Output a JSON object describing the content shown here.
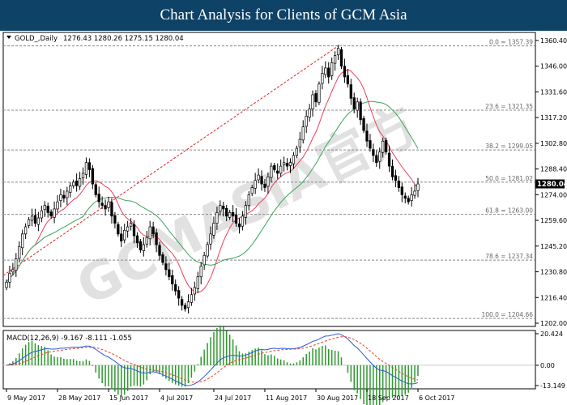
{
  "banner": {
    "title": "Chart Analysis for Clients of GCM Asia"
  },
  "watermark": {
    "brand": "GCMASIA官方"
  },
  "chart_data": {
    "type": "candlestick",
    "symbol_header": "GOLD_,Daily",
    "ohlc_header": "1276.43 1280.26 1275.15 1280.04",
    "current_price": "1280.04",
    "price_axis": {
      "min": 1202.0,
      "max": 1360.4,
      "ticks": [
        "1360.40",
        "1346.00",
        "1331.60",
        "1317.20",
        "1302.80",
        "1288.40",
        "1274.00",
        "1259.60",
        "1245.20",
        "1230.80",
        "1216.40",
        "1202.00"
      ]
    },
    "time_axis": [
      "9 May 2017",
      "28 May 2017",
      "15 Jun 2017",
      "4 Jul 2017",
      "24 Jul 2017",
      "11 Aug 2017",
      "30 Aug 2017",
      "18 Sep 2017",
      "6 Oct 2017"
    ],
    "fibonacci": [
      {
        "label": "0.0 = 1357.39",
        "price": 1357.39
      },
      {
        "label": "23.6 = 1321.35",
        "price": 1321.35
      },
      {
        "label": "38.2 = 1299.05",
        "price": 1299.05
      },
      {
        "label": "50.0 = 1281.02",
        "price": 1281.02
      },
      {
        "label": "61.8 = 1263.00",
        "price": 1263.0
      },
      {
        "label": "78.6 = 1237.34",
        "price": 1237.34
      },
      {
        "label": "100.0 = 1204.66",
        "price": 1204.66
      }
    ],
    "closes": [
      1225,
      1230,
      1232,
      1238,
      1245,
      1252,
      1256,
      1260,
      1262,
      1258,
      1261,
      1265,
      1268,
      1264,
      1262,
      1266,
      1270,
      1274,
      1272,
      1276,
      1279,
      1281,
      1279,
      1283,
      1286,
      1292,
      1288,
      1280,
      1274,
      1270,
      1268,
      1266,
      1270,
      1262,
      1258,
      1252,
      1248,
      1254,
      1256,
      1258,
      1251,
      1247,
      1243,
      1246,
      1250,
      1256,
      1252,
      1246,
      1240,
      1236,
      1232,
      1228,
      1224,
      1220,
      1216,
      1212,
      1210,
      1214,
      1218,
      1222,
      1228,
      1234,
      1240,
      1246,
      1252,
      1258,
      1264,
      1268,
      1266,
      1262,
      1264,
      1262,
      1258,
      1256,
      1262,
      1268,
      1274,
      1278,
      1282,
      1285,
      1280,
      1278,
      1284,
      1290,
      1288,
      1286,
      1290,
      1292,
      1290,
      1292,
      1296,
      1300,
      1305,
      1312,
      1318,
      1322,
      1330,
      1326,
      1336,
      1342,
      1345,
      1340,
      1348,
      1352,
      1356,
      1346,
      1340,
      1336,
      1328,
      1322,
      1326,
      1316,
      1310,
      1304,
      1300,
      1296,
      1292,
      1298,
      1304,
      1298,
      1290,
      1284,
      1282,
      1278,
      1274,
      1272,
      1270,
      1274,
      1276,
      1280.04
    ],
    "overlays": [
      {
        "name": "MA-red",
        "color": "#e8405a"
      },
      {
        "name": "MA-green",
        "color": "#3aa35a"
      }
    ],
    "macd": {
      "header": "MACD(12,26,9) -9.167 -8.111 -1.055",
      "scale": {
        "max": 20.424,
        "min": -13.149
      },
      "ticks": [
        "20.424",
        "0.00",
        "-13.149"
      ],
      "main_color": "#2a5ad8",
      "signal_color": "#e84030",
      "hist_color": "#2e9a2e"
    }
  }
}
